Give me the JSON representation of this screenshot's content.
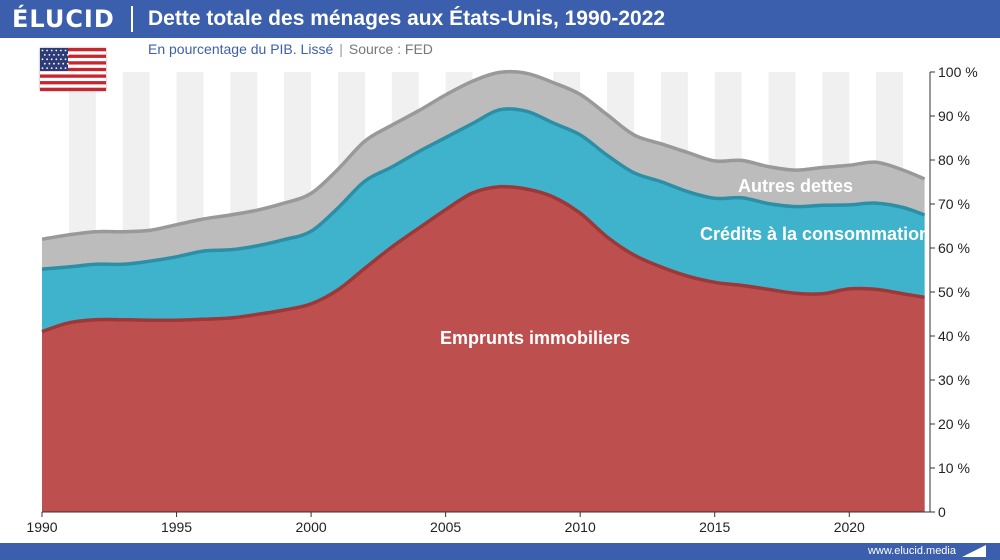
{
  "header": {
    "logo": "ÉLUCID",
    "title": "Dette totale des ménages aux États-Unis, 1990-2022"
  },
  "subheader": {
    "subtitle": "En pourcentage du PIB. Lissé",
    "separator": "|",
    "source": "Source : FED"
  },
  "footer": {
    "site": "www.elucid.media"
  },
  "flag": {
    "country": "États-Unis",
    "icon": "us-flag-icon"
  },
  "colors": {
    "brand": "#3c5fad",
    "mortgages": "#bd4f4f",
    "mortgages_line": "#9c3838",
    "consumer": "#3fb3cc",
    "consumer_line": "#2c8fa6",
    "other": "#bcbcbc",
    "other_line": "#999999",
    "band": "#f0f0f0"
  },
  "chart_data": {
    "type": "area",
    "stacked": true,
    "title": "Dette totale des ménages aux États-Unis, 1990-2022",
    "subtitle": "En pourcentage du PIB. Lissé",
    "xlim": [
      1990,
      2023
    ],
    "ylim": [
      0,
      100
    ],
    "x_ticks": [
      1990,
      1995,
      2000,
      2005,
      2010,
      2015,
      2020
    ],
    "y_ticks": [
      "0",
      "10 %",
      "20 %",
      "30 %",
      "40 %",
      "50 %",
      "60 %",
      "70 %",
      "80 %",
      "90 %",
      "100 %"
    ],
    "y_tick_values": [
      0,
      10,
      20,
      30,
      40,
      50,
      60,
      70,
      80,
      90,
      100
    ],
    "y_axis_side": "right",
    "grid": false,
    "alternating_year_bands": true,
    "x": [
      1990,
      1991,
      1992,
      1993,
      1994,
      1995,
      1996,
      1997,
      1998,
      1999,
      2000,
      2001,
      2002,
      2003,
      2004,
      2005,
      2006,
      2007,
      2008,
      2009,
      2010,
      2011,
      2012,
      2013,
      2014,
      2015,
      2016,
      2017,
      2018,
      2019,
      2020,
      2021,
      2022,
      2022.8
    ],
    "series": [
      {
        "name": "Emprunts immobiliers",
        "values": [
          41,
          43,
          43.7,
          43.7,
          43.6,
          43.6,
          43.8,
          44.1,
          44.9,
          45.9,
          47.3,
          50.5,
          55.4,
          60.2,
          64.5,
          68.7,
          72.5,
          73.9,
          73.4,
          71.6,
          67.9,
          62.5,
          58.4,
          55.7,
          53.6,
          52.2,
          51.5,
          50.6,
          49.7,
          49.6,
          50.7,
          50.6,
          49.6,
          48.8
        ]
      },
      {
        "name": "Crédits à la consommation",
        "values": [
          14.2,
          12.7,
          12.6,
          12.6,
          13.4,
          14.4,
          15.5,
          15.5,
          15.6,
          16,
          16.5,
          18.6,
          19.8,
          18.2,
          17.4,
          16.4,
          15.8,
          17.5,
          17.7,
          16.8,
          17.8,
          18.6,
          18.7,
          19.4,
          19.2,
          19.1,
          19.9,
          19.5,
          19.7,
          20.1,
          19.1,
          19.6,
          19.6,
          18.7
        ]
      },
      {
        "name": "Autres dettes",
        "values": [
          6.8,
          7.3,
          7.4,
          7.4,
          7,
          7.3,
          7.3,
          7.9,
          8.1,
          8.3,
          8.6,
          8.8,
          9.1,
          9.5,
          9.3,
          9.7,
          9.6,
          8.5,
          8.6,
          9.2,
          9.2,
          9.2,
          8.6,
          8.6,
          8.9,
          8.5,
          8.5,
          8.4,
          8.3,
          8.6,
          9,
          9.3,
          8.5,
          8.2
        ]
      }
    ],
    "annotations": [
      {
        "text": "Autres dettes",
        "series": "Autres dettes"
      },
      {
        "text": "Crédits à la consommation",
        "series": "Crédits à la consommation"
      },
      {
        "text": "Emprunts immobiliers",
        "series": "Emprunts immobiliers"
      }
    ]
  }
}
